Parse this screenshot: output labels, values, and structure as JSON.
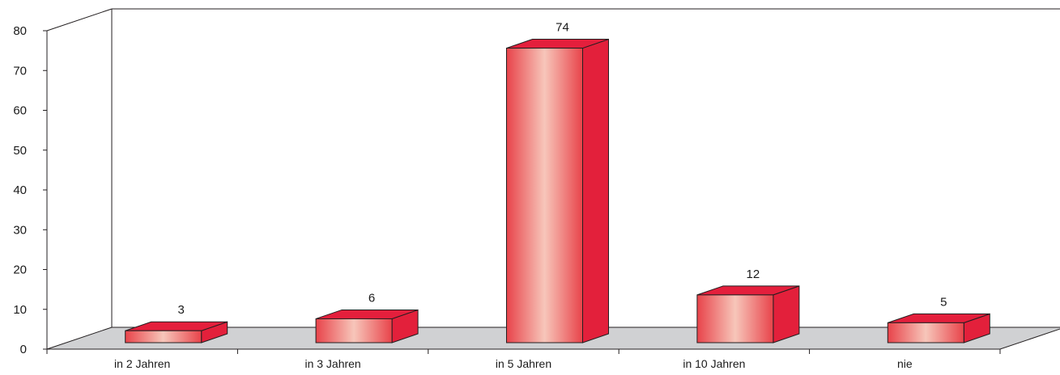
{
  "chart_data": {
    "type": "bar",
    "style": "3d",
    "categories": [
      "in 2 Jahren",
      "in 3 Jahren",
      "in 5 Jahren",
      "in 10 Jahren",
      "nie"
    ],
    "values": [
      3,
      6,
      74,
      12,
      5
    ],
    "data_labels": [
      "3",
      "6",
      "74",
      "12",
      "5"
    ],
    "yticks": [
      "0",
      "10",
      "20",
      "30",
      "40",
      "50",
      "60",
      "70",
      "80"
    ],
    "ylim": [
      0,
      80
    ],
    "title": "",
    "xlabel": "",
    "ylabel": "",
    "grid": false,
    "legend": "none",
    "colors": {
      "bar_front_edge": "#e8434a",
      "bar_front_center": "#f7c6ba",
      "bar_side": "#e3203b",
      "bar_top": "#e41f3c",
      "floor": "#d0d1d3",
      "axis": "#231f20"
    }
  }
}
